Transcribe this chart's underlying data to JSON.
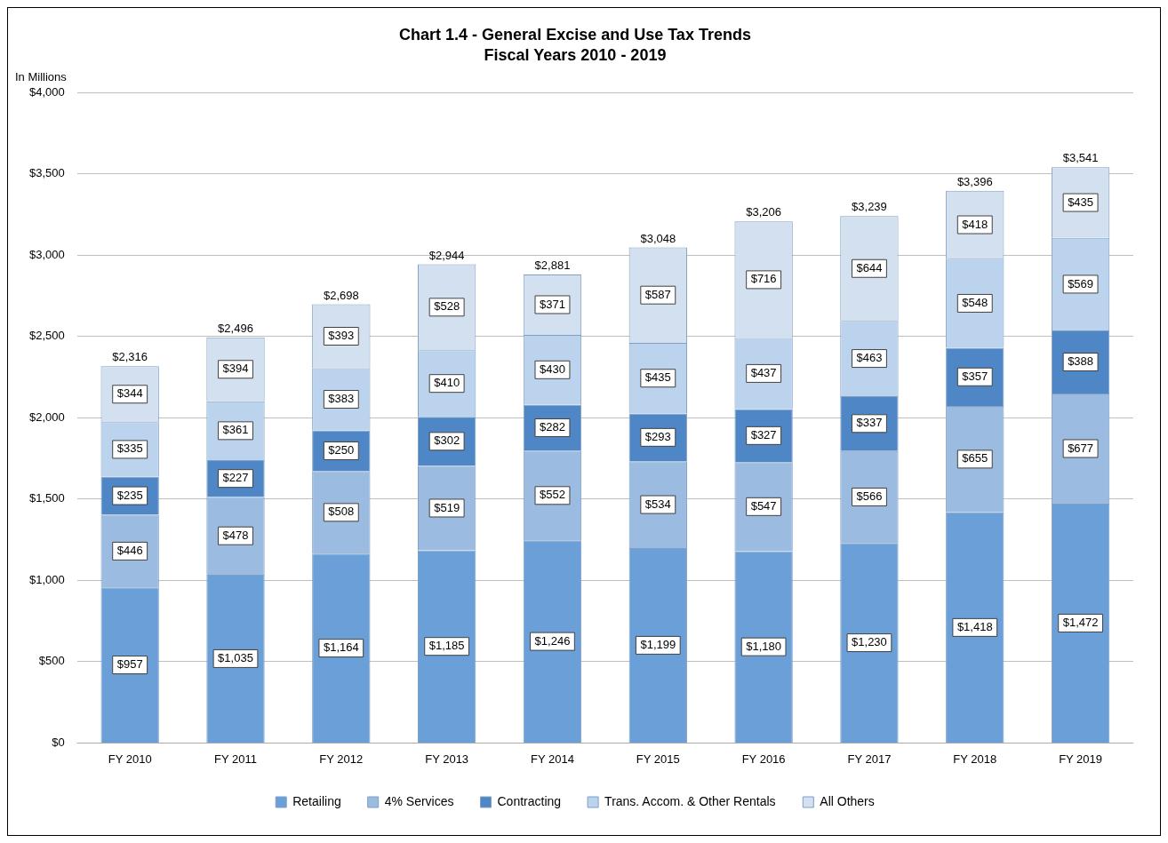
{
  "chart_data": {
    "type": "bar",
    "title": "Chart 1.4 - General Excise and Use Tax Trends",
    "subtitle": "Fiscal Years 2010 - 2019",
    "ylabel": "In Millions",
    "stacked": true,
    "categories": [
      "FY 2010",
      "FY 2011",
      "FY 2012",
      "FY 2013",
      "FY 2014",
      "FY 2015",
      "FY 2016",
      "FY 2017",
      "FY 2018",
      "FY 2019"
    ],
    "series": [
      {
        "name": "Retailing",
        "color": "#6a9fd8",
        "values": [
          957,
          1035,
          1164,
          1185,
          1246,
          1199,
          1180,
          1230,
          1418,
          1472
        ],
        "value_labels": [
          "$957",
          "$1,035",
          "$1,164",
          "$1,185",
          "$1,246",
          "$1,199",
          "$1,180",
          "$1,230",
          "$1,418",
          "$1,472"
        ]
      },
      {
        "name": "4% Services",
        "color": "#9cbbe0",
        "values": [
          446,
          478,
          508,
          519,
          552,
          534,
          547,
          566,
          655,
          677
        ],
        "value_labels": [
          "$446",
          "$478",
          "$508",
          "$519",
          "$552",
          "$534",
          "$547",
          "$566",
          "$655",
          "$677"
        ]
      },
      {
        "name": "Contracting",
        "color": "#4f86c6",
        "values": [
          235,
          227,
          250,
          302,
          282,
          293,
          327,
          337,
          357,
          388
        ],
        "value_labels": [
          "$235",
          "$227",
          "$250",
          "$302",
          "$282",
          "$293",
          "$327",
          "$337",
          "$357",
          "$388"
        ]
      },
      {
        "name": "Trans. Accom. & Other Rentals",
        "color": "#bcd3ee",
        "values": [
          335,
          361,
          383,
          410,
          430,
          435,
          437,
          463,
          548,
          569
        ],
        "value_labels": [
          "$335",
          "$361",
          "$383",
          "$410",
          "$430",
          "$435",
          "$437",
          "$463",
          "$548",
          "$569"
        ]
      },
      {
        "name": "All Others",
        "color": "#d3e0f0",
        "values": [
          344,
          394,
          393,
          528,
          371,
          587,
          716,
          644,
          418,
          435
        ],
        "value_labels": [
          "$344",
          "$394",
          "$393",
          "$528",
          "$371",
          "$587",
          "$716",
          "$644",
          "$418",
          "$435"
        ]
      }
    ],
    "totals": [
      "$2,316",
      "$2,496",
      "$2,698",
      "$2,944",
      "$2,881",
      "$3,048",
      "$3,206",
      "$3,239",
      "$3,396",
      "$3,541"
    ],
    "ylim": [
      0,
      4000
    ],
    "yticks": [
      {
        "value": 0,
        "label": "$0"
      },
      {
        "value": 500,
        "label": "$500"
      },
      {
        "value": 1000,
        "label": "$1,000"
      },
      {
        "value": 1500,
        "label": "$1,500"
      },
      {
        "value": 2000,
        "label": "$2,000"
      },
      {
        "value": 2500,
        "label": "$2,500"
      },
      {
        "value": 3000,
        "label": "$3,000"
      },
      {
        "value": 3500,
        "label": "$3,500"
      },
      {
        "value": 4000,
        "label": "$4,000"
      }
    ],
    "grid": "y",
    "legend": "bottom"
  }
}
